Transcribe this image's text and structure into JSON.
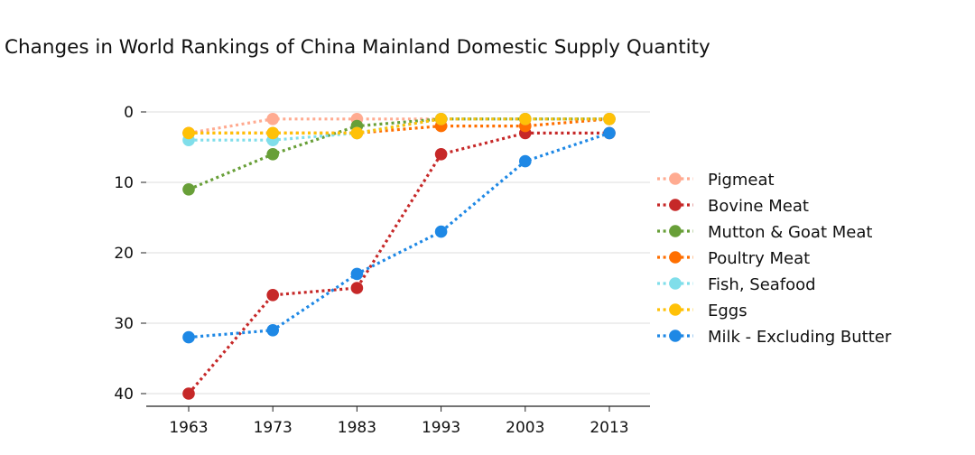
{
  "chart_data": {
    "type": "line",
    "title": "Changes in World Rankings of China Mainland Domestic Supply Quantity",
    "xlabel": "",
    "ylabel": "",
    "x": [
      "1963",
      "1973",
      "1983",
      "1993",
      "2003",
      "2013"
    ],
    "yticks": [
      "0",
      "10",
      "20",
      "30",
      "40"
    ],
    "ylim": [
      42,
      -2
    ],
    "y_inverted": true,
    "grid": "horizontal",
    "legend_position": "right",
    "series": [
      {
        "name": "Pigmeat",
        "color": "#ffab91",
        "values": [
          3,
          1,
          1,
          1,
          1,
          1
        ]
      },
      {
        "name": "Bovine Meat",
        "color": "#c62828",
        "values": [
          40,
          26,
          25,
          6,
          3,
          3
        ]
      },
      {
        "name": "Mutton & Goat Meat",
        "color": "#689f38",
        "values": [
          11,
          6,
          2,
          1,
          1,
          1
        ]
      },
      {
        "name": "Poultry Meat",
        "color": "#ff6f00",
        "values": [
          3,
          3,
          3,
          2,
          2,
          1
        ]
      },
      {
        "name": "Fish, Seafood",
        "color": "#80deea",
        "values": [
          4,
          4,
          3,
          1,
          1,
          1
        ]
      },
      {
        "name": "Eggs",
        "color": "#ffc107",
        "values": [
          3,
          3,
          3,
          1,
          1,
          1
        ]
      },
      {
        "name": "Milk - Excluding Butter",
        "color": "#1e88e5",
        "values": [
          32,
          31,
          23,
          17,
          7,
          3
        ]
      }
    ]
  }
}
